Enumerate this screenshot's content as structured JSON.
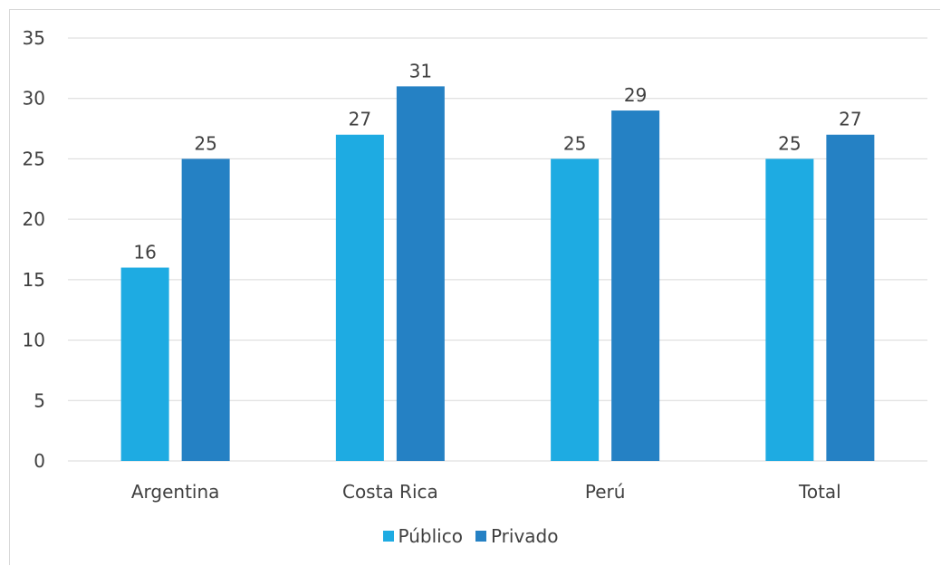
{
  "chart_data": {
    "type": "bar",
    "title": "",
    "xlabel": "",
    "ylabel": "",
    "categories": [
      "Argentina",
      "Costa Rica",
      "Perú",
      "Total"
    ],
    "series": [
      {
        "name": "Público",
        "values": [
          16,
          27,
          25,
          25
        ],
        "color": "#1eabe2"
      },
      {
        "name": "Privado",
        "values": [
          25,
          31,
          29,
          27
        ],
        "color": "#2581c4"
      }
    ],
    "ylim": [
      0,
      35
    ],
    "yticks": [
      "0",
      "5",
      "10",
      "15",
      "20",
      "25",
      "30",
      "35"
    ],
    "grid": true,
    "legend_position": "bottom",
    "gridline_color": "#d9d9d9"
  }
}
